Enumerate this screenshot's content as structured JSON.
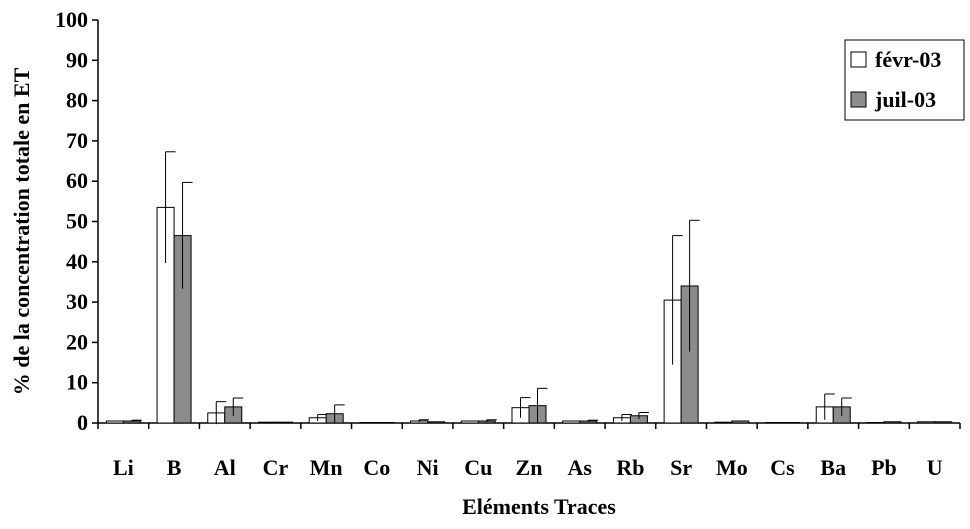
{
  "chart_data": {
    "type": "bar",
    "title": "",
    "xlabel": "Eléments Traces",
    "ylabel": "% de la concentration totale en ET",
    "ylim": [
      0,
      100
    ],
    "yticks": [
      "0",
      "10",
      "20",
      "30",
      "40",
      "50",
      "60",
      "70",
      "80",
      "90",
      "100"
    ],
    "categories": [
      "Li",
      "B",
      "Al",
      "Cr",
      "Mn",
      "Co",
      "Ni",
      "Cu",
      "Zn",
      "As",
      "Rb",
      "Sr",
      "Mo",
      "Cs",
      "Ba",
      "Pb",
      "U"
    ],
    "series": [
      {
        "name": "févr-03",
        "color": "#ffffff",
        "values": [
          0.5,
          53.5,
          2.5,
          0.2,
          1.3,
          0.1,
          0.5,
          0.5,
          3.8,
          0.5,
          1.3,
          30.5,
          0.2,
          0.1,
          4.0,
          0.1,
          0.3
        ],
        "errors": [
          0,
          13.8,
          2.8,
          0,
          0.8,
          0,
          0.3,
          0,
          2.5,
          0,
          0.8,
          16.0,
          0,
          0,
          3.2,
          0,
          0
        ]
      },
      {
        "name": "juil-03",
        "color": "#8c8c8c",
        "values": [
          0.5,
          46.5,
          4.0,
          0.2,
          2.3,
          0.1,
          0.3,
          0.5,
          4.3,
          0.5,
          1.8,
          34.0,
          0.5,
          0.1,
          4.0,
          0.3,
          0.3
        ],
        "errors": [
          0.2,
          13.2,
          2.2,
          0,
          2.2,
          0,
          0,
          0.3,
          4.3,
          0.2,
          0.8,
          16.3,
          0,
          0,
          2.2,
          0,
          0
        ]
      }
    ],
    "grid": false,
    "legend_position": "top-right"
  }
}
